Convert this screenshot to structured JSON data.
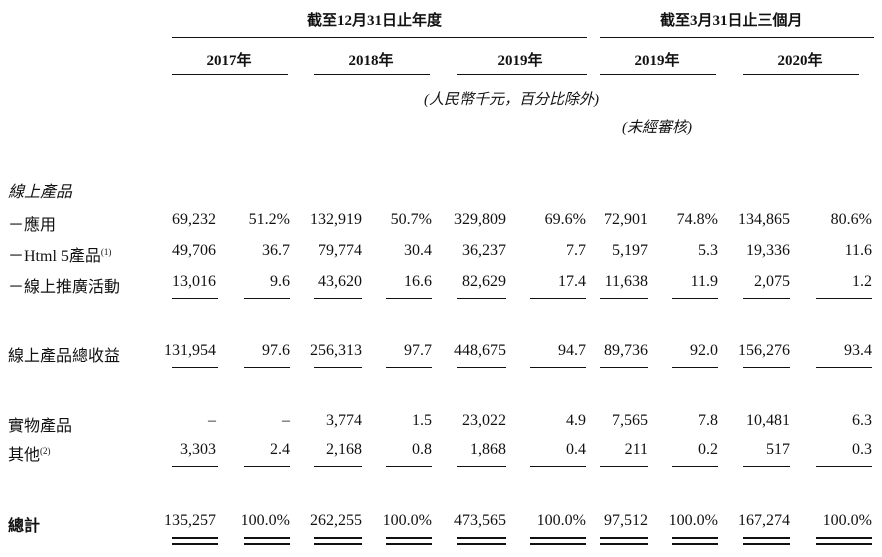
{
  "headers": {
    "period_a": "截至12月31日止年度",
    "period_b": "截至3月31日止三個月",
    "years": [
      "2017年",
      "2018年",
      "2019年",
      "2019年",
      "2020年"
    ],
    "currency_note": "(人民幣千元，百分比除外)",
    "unaudited_note": "(未經審核)"
  },
  "section_online": "線上產品",
  "rows": [
    {
      "label": "－應用",
      "sup": "",
      "values": [
        "69,232",
        "51.2%",
        "132,919",
        "50.7%",
        "329,809",
        "69.6%",
        "72,901",
        "74.8%",
        "134,865",
        "80.6%"
      ]
    },
    {
      "label": "－Html 5產品",
      "sup": "(1)",
      "values": [
        "49,706",
        "36.7",
        "79,774",
        "30.4",
        "36,237",
        "7.7",
        "5,197",
        "5.3",
        "19,336",
        "11.6"
      ]
    },
    {
      "label": "－線上推廣活動",
      "sup": "",
      "values": [
        "13,016",
        "9.6",
        "43,620",
        "16.6",
        "82,629",
        "17.4",
        "11,638",
        "11.9",
        "2,075",
        "1.2"
      ]
    },
    {
      "label": "線上產品總收益",
      "sup": "",
      "values": [
        "131,954",
        "97.6",
        "256,313",
        "97.7",
        "448,675",
        "94.7",
        "89,736",
        "92.0",
        "156,276",
        "93.4"
      ]
    },
    {
      "label": "實物產品",
      "sup": "",
      "values": [
        "–",
        "–",
        "3,774",
        "1.5",
        "23,022",
        "4.9",
        "7,565",
        "7.8",
        "10,481",
        "6.3"
      ]
    },
    {
      "label": "其他",
      "sup": "(2)",
      "values": [
        "3,303",
        "2.4",
        "2,168",
        "0.8",
        "1,868",
        "0.4",
        "211",
        "0.2",
        "517",
        "0.3"
      ]
    },
    {
      "label": "總計",
      "sup": "",
      "values": [
        "135,257",
        "100.0%",
        "262,255",
        "100.0%",
        "473,565",
        "100.0%",
        "97,512",
        "100.0%",
        "167,274",
        "100.0%"
      ]
    }
  ]
}
